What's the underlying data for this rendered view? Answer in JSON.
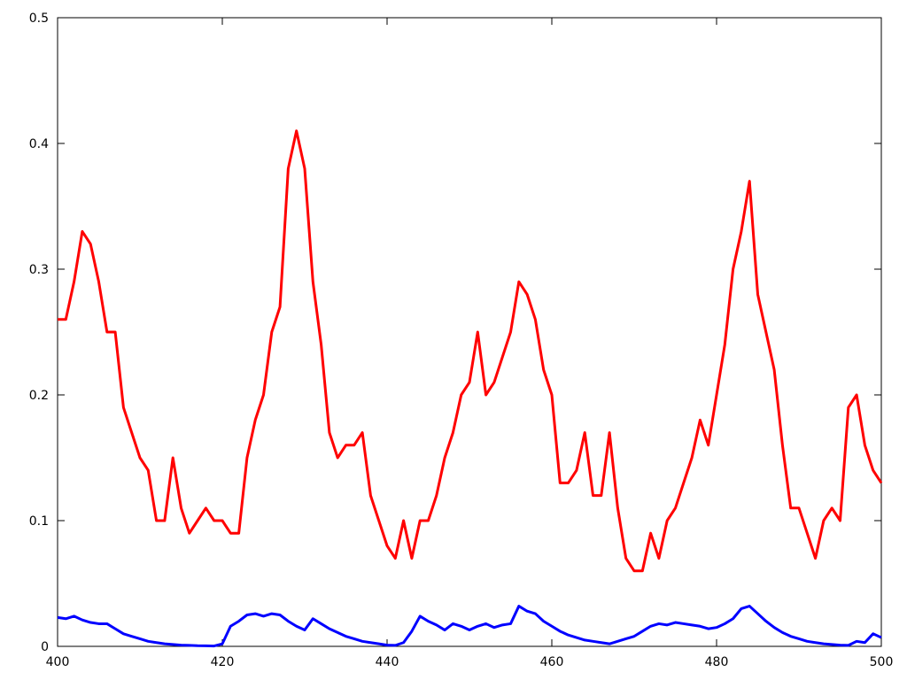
{
  "chart_data": {
    "type": "line",
    "x": [
      400,
      401,
      402,
      403,
      404,
      405,
      406,
      407,
      408,
      409,
      410,
      411,
      412,
      413,
      414,
      415,
      416,
      417,
      418,
      419,
      420,
      421,
      422,
      423,
      424,
      425,
      426,
      427,
      428,
      429,
      430,
      431,
      432,
      433,
      434,
      435,
      436,
      437,
      438,
      439,
      440,
      441,
      442,
      443,
      444,
      445,
      446,
      447,
      448,
      449,
      450,
      451,
      452,
      453,
      454,
      455,
      456,
      457,
      458,
      459,
      460,
      461,
      462,
      463,
      464,
      465,
      466,
      467,
      468,
      469,
      470,
      471,
      472,
      473,
      474,
      475,
      476,
      477,
      478,
      479,
      480,
      481,
      482,
      483,
      484,
      485,
      486,
      487,
      488,
      489,
      490,
      491,
      492,
      493,
      494,
      495,
      496,
      497,
      498,
      499,
      500
    ],
    "series": [
      {
        "color": "#ff0000",
        "values": [
          0.26,
          0.26,
          0.29,
          0.33,
          0.32,
          0.29,
          0.25,
          0.25,
          0.19,
          0.17,
          0.15,
          0.14,
          0.1,
          0.1,
          0.15,
          0.11,
          0.09,
          0.1,
          0.11,
          0.1,
          0.1,
          0.09,
          0.09,
          0.15,
          0.18,
          0.2,
          0.25,
          0.27,
          0.38,
          0.41,
          0.38,
          0.29,
          0.24,
          0.17,
          0.15,
          0.16,
          0.16,
          0.17,
          0.12,
          0.1,
          0.08,
          0.07,
          0.1,
          0.07,
          0.1,
          0.1,
          0.12,
          0.15,
          0.17,
          0.2,
          0.21,
          0.25,
          0.2,
          0.21,
          0.23,
          0.25,
          0.29,
          0.28,
          0.26,
          0.22,
          0.2,
          0.13,
          0.13,
          0.14,
          0.17,
          0.12,
          0.12,
          0.17,
          0.11,
          0.07,
          0.06,
          0.06,
          0.09,
          0.07,
          0.1,
          0.11,
          0.13,
          0.15,
          0.18,
          0.16,
          0.2,
          0.24,
          0.3,
          0.33,
          0.37,
          0.28,
          0.25,
          0.22,
          0.16,
          0.11,
          0.11,
          0.09,
          0.07,
          0.1,
          0.11,
          0.1,
          0.19,
          0.2,
          0.16,
          0.14,
          0.13
        ]
      },
      {
        "color": "#0000ff",
        "values": [
          0.023,
          0.022,
          0.024,
          0.021,
          0.019,
          0.018,
          0.018,
          0.014,
          0.01,
          0.008,
          0.006,
          0.004,
          0.003,
          0.002,
          0.0015,
          0.001,
          0.0008,
          0.0005,
          0.0004,
          0.0003,
          0.002,
          0.016,
          0.02,
          0.025,
          0.026,
          0.024,
          0.026,
          0.025,
          0.02,
          0.016,
          0.013,
          0.022,
          0.018,
          0.014,
          0.011,
          0.008,
          0.006,
          0.004,
          0.003,
          0.002,
          0.001,
          0.0008,
          0.003,
          0.012,
          0.024,
          0.02,
          0.017,
          0.013,
          0.018,
          0.016,
          0.013,
          0.016,
          0.018,
          0.015,
          0.017,
          0.018,
          0.032,
          0.028,
          0.026,
          0.02,
          0.016,
          0.012,
          0.009,
          0.007,
          0.005,
          0.004,
          0.003,
          0.002,
          0.004,
          0.006,
          0.008,
          0.012,
          0.016,
          0.018,
          0.017,
          0.019,
          0.018,
          0.017,
          0.016,
          0.014,
          0.015,
          0.018,
          0.022,
          0.03,
          0.032,
          0.026,
          0.02,
          0.015,
          0.011,
          0.008,
          0.006,
          0.004,
          0.003,
          0.002,
          0.0015,
          0.001,
          0.0008,
          0.004,
          0.003,
          0.01,
          0.007
        ]
      }
    ],
    "xlim": [
      400,
      500
    ],
    "ylim": [
      0,
      0.5
    ],
    "xticks": [
      400,
      420,
      440,
      460,
      480,
      500
    ],
    "yticks": [
      0,
      0.1,
      0.2,
      0.3,
      0.4,
      0.5
    ]
  }
}
